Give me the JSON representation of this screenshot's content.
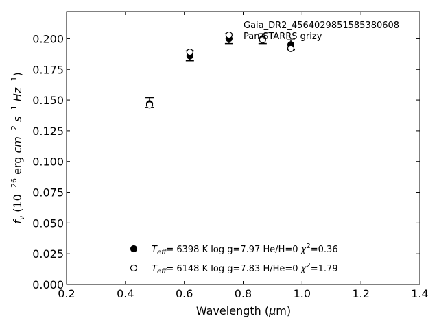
{
  "chart_data": {
    "type": "scatter",
    "title": "",
    "xlabel": "Wavelength (μm)",
    "ylabel": "fν (10⁻²⁶ erg cm⁻² s⁻¹ Hz⁻¹)",
    "xlim": [
      0.2,
      1.4
    ],
    "ylim": [
      0.0,
      0.222
    ],
    "x_ticks": [
      "0.2",
      "0.4",
      "0.6",
      "0.8",
      "1.0",
      "1.2",
      "1.4"
    ],
    "y_ticks": [
      "0.000",
      "0.025",
      "0.050",
      "0.075",
      "0.100",
      "0.125",
      "0.150",
      "0.175",
      "0.200"
    ],
    "grid": false,
    "observed": {
      "source": "Gaia_DR2_4564029851585380608",
      "survey": "Pan-STARRS grizy",
      "x": [
        0.482,
        0.619,
        0.752,
        0.866,
        0.962
      ],
      "y": [
        0.148,
        0.186,
        0.2,
        0.2,
        0.195
      ],
      "yerr": [
        0.004,
        0.004,
        0.004,
        0.004,
        0.004
      ]
    },
    "series": [
      {
        "name": "Teff= 6398 K log g=7.97 He/H=0 χ²=0.36",
        "marker": "filled-circle",
        "x": [
          0.482,
          0.619,
          0.752,
          0.866,
          0.962
        ],
        "y": [
          0.147,
          0.186,
          0.2,
          0.2,
          0.195
        ]
      },
      {
        "name": "Teff= 6148 K log g=7.83 H/He=0 χ²=1.79",
        "marker": "open-circle",
        "x": [
          0.482,
          0.619,
          0.752,
          0.866,
          0.962
        ],
        "y": [
          0.146,
          0.189,
          0.203,
          0.199,
          0.192
        ]
      }
    ],
    "legend_items": [
      {
        "marker": "filled-circle",
        "teff_label": "T",
        "teff_sub": "eff",
        "teff_value": "=  6398 K",
        "logg": "log g=7.97",
        "comp": "He/H=0",
        "chi_label": "χ",
        "chi_sup": "2",
        "chi_value": "=0.36"
      },
      {
        "marker": "open-circle",
        "teff_label": "T",
        "teff_sub": "eff",
        "teff_value": "=  6148 K",
        "logg": "log g=7.83",
        "comp": "H/He=0",
        "chi_label": "χ",
        "chi_sup": "2",
        "chi_value": "=1.79"
      }
    ],
    "legend_placement": "lower-center"
  }
}
